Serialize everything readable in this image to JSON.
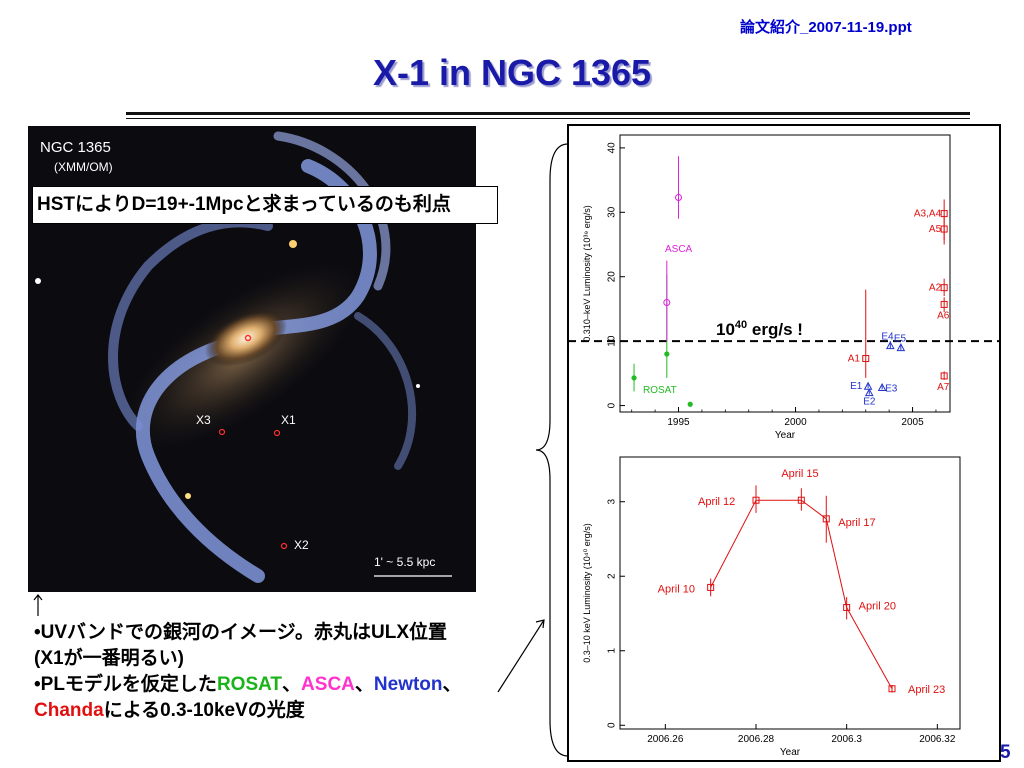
{
  "header": {
    "filename": "論文紹介_2007-11-19.ppt",
    "title": "X-1 in NGC 1365"
  },
  "galaxy_image": {
    "name": "NGC 1365",
    "subtitle": "(XMM/OM)",
    "labels": [
      "X3",
      "X1",
      "X2"
    ],
    "scale_bar": "1' ~ 5.5 kpc"
  },
  "callout": {
    "text": "HSTによりD=19+-1Mpcと求まっているのも利点"
  },
  "bullets": {
    "line1": "•UVバンドでの銀河のイメージ。赤丸はULX位置",
    "line2": "(X1が一番明るい)",
    "line3_prefix": "•PLモデルを仮定した",
    "rosat": "ROSAT",
    "sep1": "、",
    "asca": "ASCA",
    "sep2": "、",
    "newton": "Newton",
    "sep3": "、",
    "chandra": "Chanda",
    "line4_suffix": "による0.3-10keVの光度"
  },
  "threshold_label": {
    "main": "10",
    "sup": "40",
    "rest": " erg/s !"
  },
  "page_number": "5",
  "colors": {
    "rosat": "#22bb22",
    "asca": "#dd22dd",
    "newton": "#2233cc",
    "chandra": "#e01010",
    "title": "#1a1aa8"
  },
  "chart_data": [
    {
      "type": "scatter",
      "xlabel": "Year",
      "ylabel": "0.310–keV Luminosity (10³⁹ erg/s)",
      "xlim": [
        1992.5,
        2006.6
      ],
      "ylim": [
        -1,
        42
      ],
      "xticks": [
        1995,
        2000,
        2005
      ],
      "yticks": [
        0,
        10,
        20,
        30,
        40
      ],
      "threshold": 10,
      "series": [
        {
          "name": "ROSAT",
          "color": "#22bb22",
          "marker": "dot",
          "points": [
            {
              "x": 1993.1,
              "y": 4.3,
              "lo": 2.2,
              "hi": 6.5
            },
            {
              "x": 1994.5,
              "y": 8.0,
              "lo": 4.3,
              "hi": 20.3
            },
            {
              "x": 1995.5,
              "y": 0.2,
              "lo": 0.2,
              "hi": 0.2
            }
          ]
        },
        {
          "name": "ASCA",
          "color": "#dd22dd",
          "marker": "circle",
          "points": [
            {
              "x": 1995.0,
              "y": 32.3,
              "lo": 29.0,
              "hi": 38.7
            },
            {
              "x": 1994.5,
              "y": 16.0,
              "lo": 10.0,
              "hi": 22.5
            }
          ]
        },
        {
          "name": "",
          "color": "#e01010",
          "marker": "square",
          "points": [
            {
              "x": 2003.0,
              "y": 7.3,
              "lo": 4.3,
              "hi": 18.0,
              "label": "A1"
            },
            {
              "x": 2006.35,
              "y": 29.8,
              "lo": 25.7,
              "hi": 32.0,
              "label": "A3,A4"
            },
            {
              "x": 2006.35,
              "y": 27.4,
              "lo": 25.0,
              "hi": 29.5,
              "label": "A5"
            },
            {
              "x": 2006.35,
              "y": 18.3,
              "lo": 17.0,
              "hi": 19.7,
              "label": "A2"
            },
            {
              "x": 2006.35,
              "y": 15.7,
              "lo": 14.5,
              "hi": 16.8,
              "label": "A6"
            },
            {
              "x": 2006.35,
              "y": 4.6,
              "lo": 4.0,
              "hi": 5.3,
              "label": "A7"
            }
          ]
        },
        {
          "name": "",
          "color": "#2233cc",
          "marker": "triangle",
          "points": [
            {
              "x": 2003.1,
              "y": 3.0,
              "lo": 2.7,
              "hi": 3.3,
              "label": "E1"
            },
            {
              "x": 2003.15,
              "y": 2.0,
              "lo": 1.7,
              "hi": 2.3,
              "label": "E2"
            },
            {
              "x": 2003.7,
              "y": 2.8,
              "lo": 2.5,
              "hi": 3.1,
              "label": "E3"
            },
            {
              "x": 2004.05,
              "y": 9.3,
              "lo": 8.8,
              "hi": 10.0,
              "label": "E4"
            },
            {
              "x": 2004.5,
              "y": 9.0,
              "lo": 8.6,
              "hi": 9.5,
              "label": "E5"
            }
          ]
        }
      ]
    },
    {
      "type": "line",
      "xlabel": "Year",
      "ylabel": "0.3–10 keV Luminosity (10⁴⁰ erg/s)",
      "xlim": [
        2006.25,
        2006.325
      ],
      "ylim": [
        -0.05,
        3.6
      ],
      "xticks": [
        2006.26,
        2006.28,
        2006.3,
        2006.32
      ],
      "xtick_labels": [
        "2006.26",
        "2006.28",
        "2006.3",
        "2006.32"
      ],
      "yticks": [
        0,
        1,
        2,
        3
      ],
      "color": "#e01010",
      "points": [
        {
          "x": 2006.27,
          "y": 1.85,
          "lo": 1.73,
          "hi": 1.97,
          "label": "April 10"
        },
        {
          "x": 2006.28,
          "y": 3.02,
          "lo": 2.85,
          "hi": 3.22,
          "label": "April 12"
        },
        {
          "x": 2006.29,
          "y": 3.02,
          "lo": 2.88,
          "hi": 3.18,
          "label": "April 15"
        },
        {
          "x": 2006.2955,
          "y": 2.77,
          "lo": 2.45,
          "hi": 3.08,
          "label": "April 17"
        },
        {
          "x": 2006.3,
          "y": 1.58,
          "lo": 1.42,
          "hi": 1.72,
          "label": "April 20"
        },
        {
          "x": 2006.31,
          "y": 0.49,
          "lo": 0.44,
          "hi": 0.54,
          "label": "April 23"
        }
      ]
    }
  ]
}
